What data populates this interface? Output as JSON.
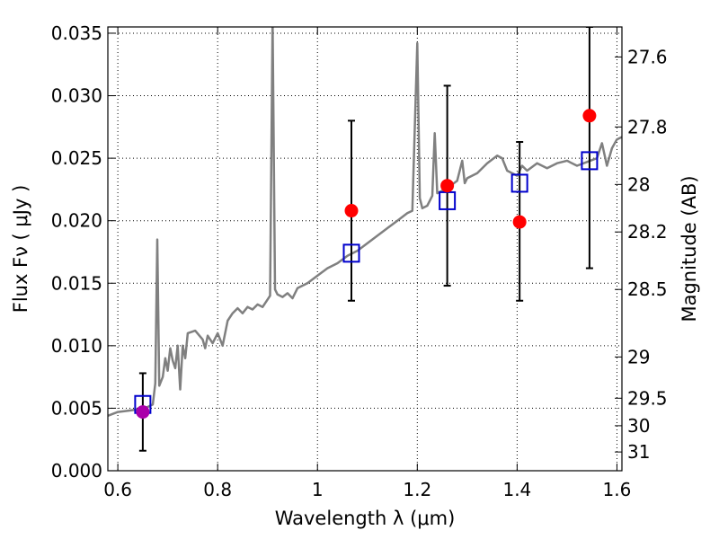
{
  "chart_data": {
    "type": "scatter",
    "title": "",
    "xlabel": "Wavelength  λ (μm)",
    "ylabel": "Flux  Fν  ( μJy )",
    "y2label": "Magnitude (AB)",
    "xlim": [
      0.58,
      1.61
    ],
    "ylim": [
      0.0,
      0.0355
    ],
    "grid": true,
    "x_ticks": [
      0.6,
      0.8,
      1.0,
      1.2,
      1.4,
      1.6
    ],
    "x_tick_labels": [
      "0.6",
      "0.8",
      "1",
      "1.2",
      "1.4",
      "1.6"
    ],
    "y_ticks": [
      0.0,
      0.005,
      0.01,
      0.015,
      0.02,
      0.025,
      0.03,
      0.035
    ],
    "y_tick_labels": [
      "0.000",
      "0.005",
      "0.010",
      "0.015",
      "0.020",
      "0.025",
      "0.030",
      "0.035"
    ],
    "y2_ticks": [
      {
        "label": "27.6",
        "flux": 0.0331
      },
      {
        "label": "27.8",
        "flux": 0.0275
      },
      {
        "label": "28",
        "flux": 0.0229
      },
      {
        "label": "28.2",
        "flux": 0.0191
      },
      {
        "label": "28.5",
        "flux": 0.0145
      },
      {
        "label": "29",
        "flux": 0.0091
      },
      {
        "label": "29.5",
        "flux": 0.0058
      },
      {
        "label": "30",
        "flux": 0.0036
      },
      {
        "label": "31",
        "flux": 0.0015
      }
    ],
    "colors": {
      "spectrum": "#808080",
      "observed": "#ff0000",
      "observed_first": "#aa00aa",
      "model": "#0000cc",
      "errorbar": "#000000"
    },
    "spectrum": [
      [
        0.58,
        0.0044
      ],
      [
        0.6,
        0.0047
      ],
      [
        0.62,
        0.0048
      ],
      [
        0.64,
        0.0049
      ],
      [
        0.66,
        0.0051
      ],
      [
        0.67,
        0.0053
      ],
      [
        0.675,
        0.007
      ],
      [
        0.679,
        0.0185
      ],
      [
        0.683,
        0.0068
      ],
      [
        0.69,
        0.0075
      ],
      [
        0.695,
        0.009
      ],
      [
        0.7,
        0.008
      ],
      [
        0.705,
        0.0098
      ],
      [
        0.71,
        0.0088
      ],
      [
        0.715,
        0.0082
      ],
      [
        0.72,
        0.01
      ],
      [
        0.725,
        0.0065
      ],
      [
        0.73,
        0.01
      ],
      [
        0.735,
        0.009
      ],
      [
        0.74,
        0.011
      ],
      [
        0.755,
        0.0112
      ],
      [
        0.77,
        0.0105
      ],
      [
        0.775,
        0.0098
      ],
      [
        0.78,
        0.0108
      ],
      [
        0.79,
        0.0102
      ],
      [
        0.8,
        0.011
      ],
      [
        0.81,
        0.01
      ],
      [
        0.82,
        0.012
      ],
      [
        0.83,
        0.0126
      ],
      [
        0.84,
        0.013
      ],
      [
        0.85,
        0.0126
      ],
      [
        0.86,
        0.0131
      ],
      [
        0.87,
        0.0129
      ],
      [
        0.88,
        0.0133
      ],
      [
        0.89,
        0.0131
      ],
      [
        0.9,
        0.0137
      ],
      [
        0.905,
        0.014
      ],
      [
        0.91,
        0.036
      ],
      [
        0.915,
        0.0145
      ],
      [
        0.92,
        0.0141
      ],
      [
        0.93,
        0.0139
      ],
      [
        0.94,
        0.0142
      ],
      [
        0.95,
        0.0138
      ],
      [
        0.96,
        0.0146
      ],
      [
        0.98,
        0.015
      ],
      [
        1.0,
        0.0156
      ],
      [
        1.02,
        0.0162
      ],
      [
        1.04,
        0.0166
      ],
      [
        1.06,
        0.0172
      ],
      [
        1.08,
        0.0176
      ],
      [
        1.1,
        0.0182
      ],
      [
        1.12,
        0.0188
      ],
      [
        1.14,
        0.0194
      ],
      [
        1.16,
        0.02
      ],
      [
        1.18,
        0.0206
      ],
      [
        1.19,
        0.0208
      ],
      [
        1.2,
        0.0342
      ],
      [
        1.205,
        0.0218
      ],
      [
        1.21,
        0.021
      ],
      [
        1.22,
        0.0212
      ],
      [
        1.23,
        0.022
      ],
      [
        1.235,
        0.027
      ],
      [
        1.24,
        0.0222
      ],
      [
        1.26,
        0.0226
      ],
      [
        1.28,
        0.0232
      ],
      [
        1.29,
        0.0248
      ],
      [
        1.295,
        0.023
      ],
      [
        1.3,
        0.0234
      ],
      [
        1.32,
        0.0238
      ],
      [
        1.34,
        0.0246
      ],
      [
        1.36,
        0.0252
      ],
      [
        1.37,
        0.025
      ],
      [
        1.38,
        0.024
      ],
      [
        1.4,
        0.0236
      ],
      [
        1.41,
        0.0244
      ],
      [
        1.42,
        0.024
      ],
      [
        1.44,
        0.0246
      ],
      [
        1.46,
        0.0242
      ],
      [
        1.48,
        0.0246
      ],
      [
        1.5,
        0.0248
      ],
      [
        1.52,
        0.0244
      ],
      [
        1.54,
        0.0247
      ],
      [
        1.56,
        0.025
      ],
      [
        1.57,
        0.0262
      ],
      [
        1.58,
        0.0244
      ],
      [
        1.59,
        0.0258
      ],
      [
        1.6,
        0.0265
      ],
      [
        1.61,
        0.0267
      ]
    ],
    "observed": [
      {
        "x": 0.65,
        "y": 0.0047,
        "yerr_low": 0.0016,
        "yerr_high": 0.0078
      },
      {
        "x": 1.068,
        "y": 0.0208,
        "yerr_low": 0.0136,
        "yerr_high": 0.028
      },
      {
        "x": 1.26,
        "y": 0.0228,
        "yerr_low": 0.0148,
        "yerr_high": 0.0308
      },
      {
        "x": 1.405,
        "y": 0.0199,
        "yerr_low": 0.0136,
        "yerr_high": 0.0263
      },
      {
        "x": 1.545,
        "y": 0.0284,
        "yerr_low": 0.0162,
        "yerr_high": 0.0355
      }
    ],
    "model": [
      {
        "x": 0.65,
        "y": 0.0053
      },
      {
        "x": 1.068,
        "y": 0.0174
      },
      {
        "x": 1.26,
        "y": 0.0216
      },
      {
        "x": 1.405,
        "y": 0.023
      },
      {
        "x": 1.545,
        "y": 0.0248
      }
    ]
  }
}
